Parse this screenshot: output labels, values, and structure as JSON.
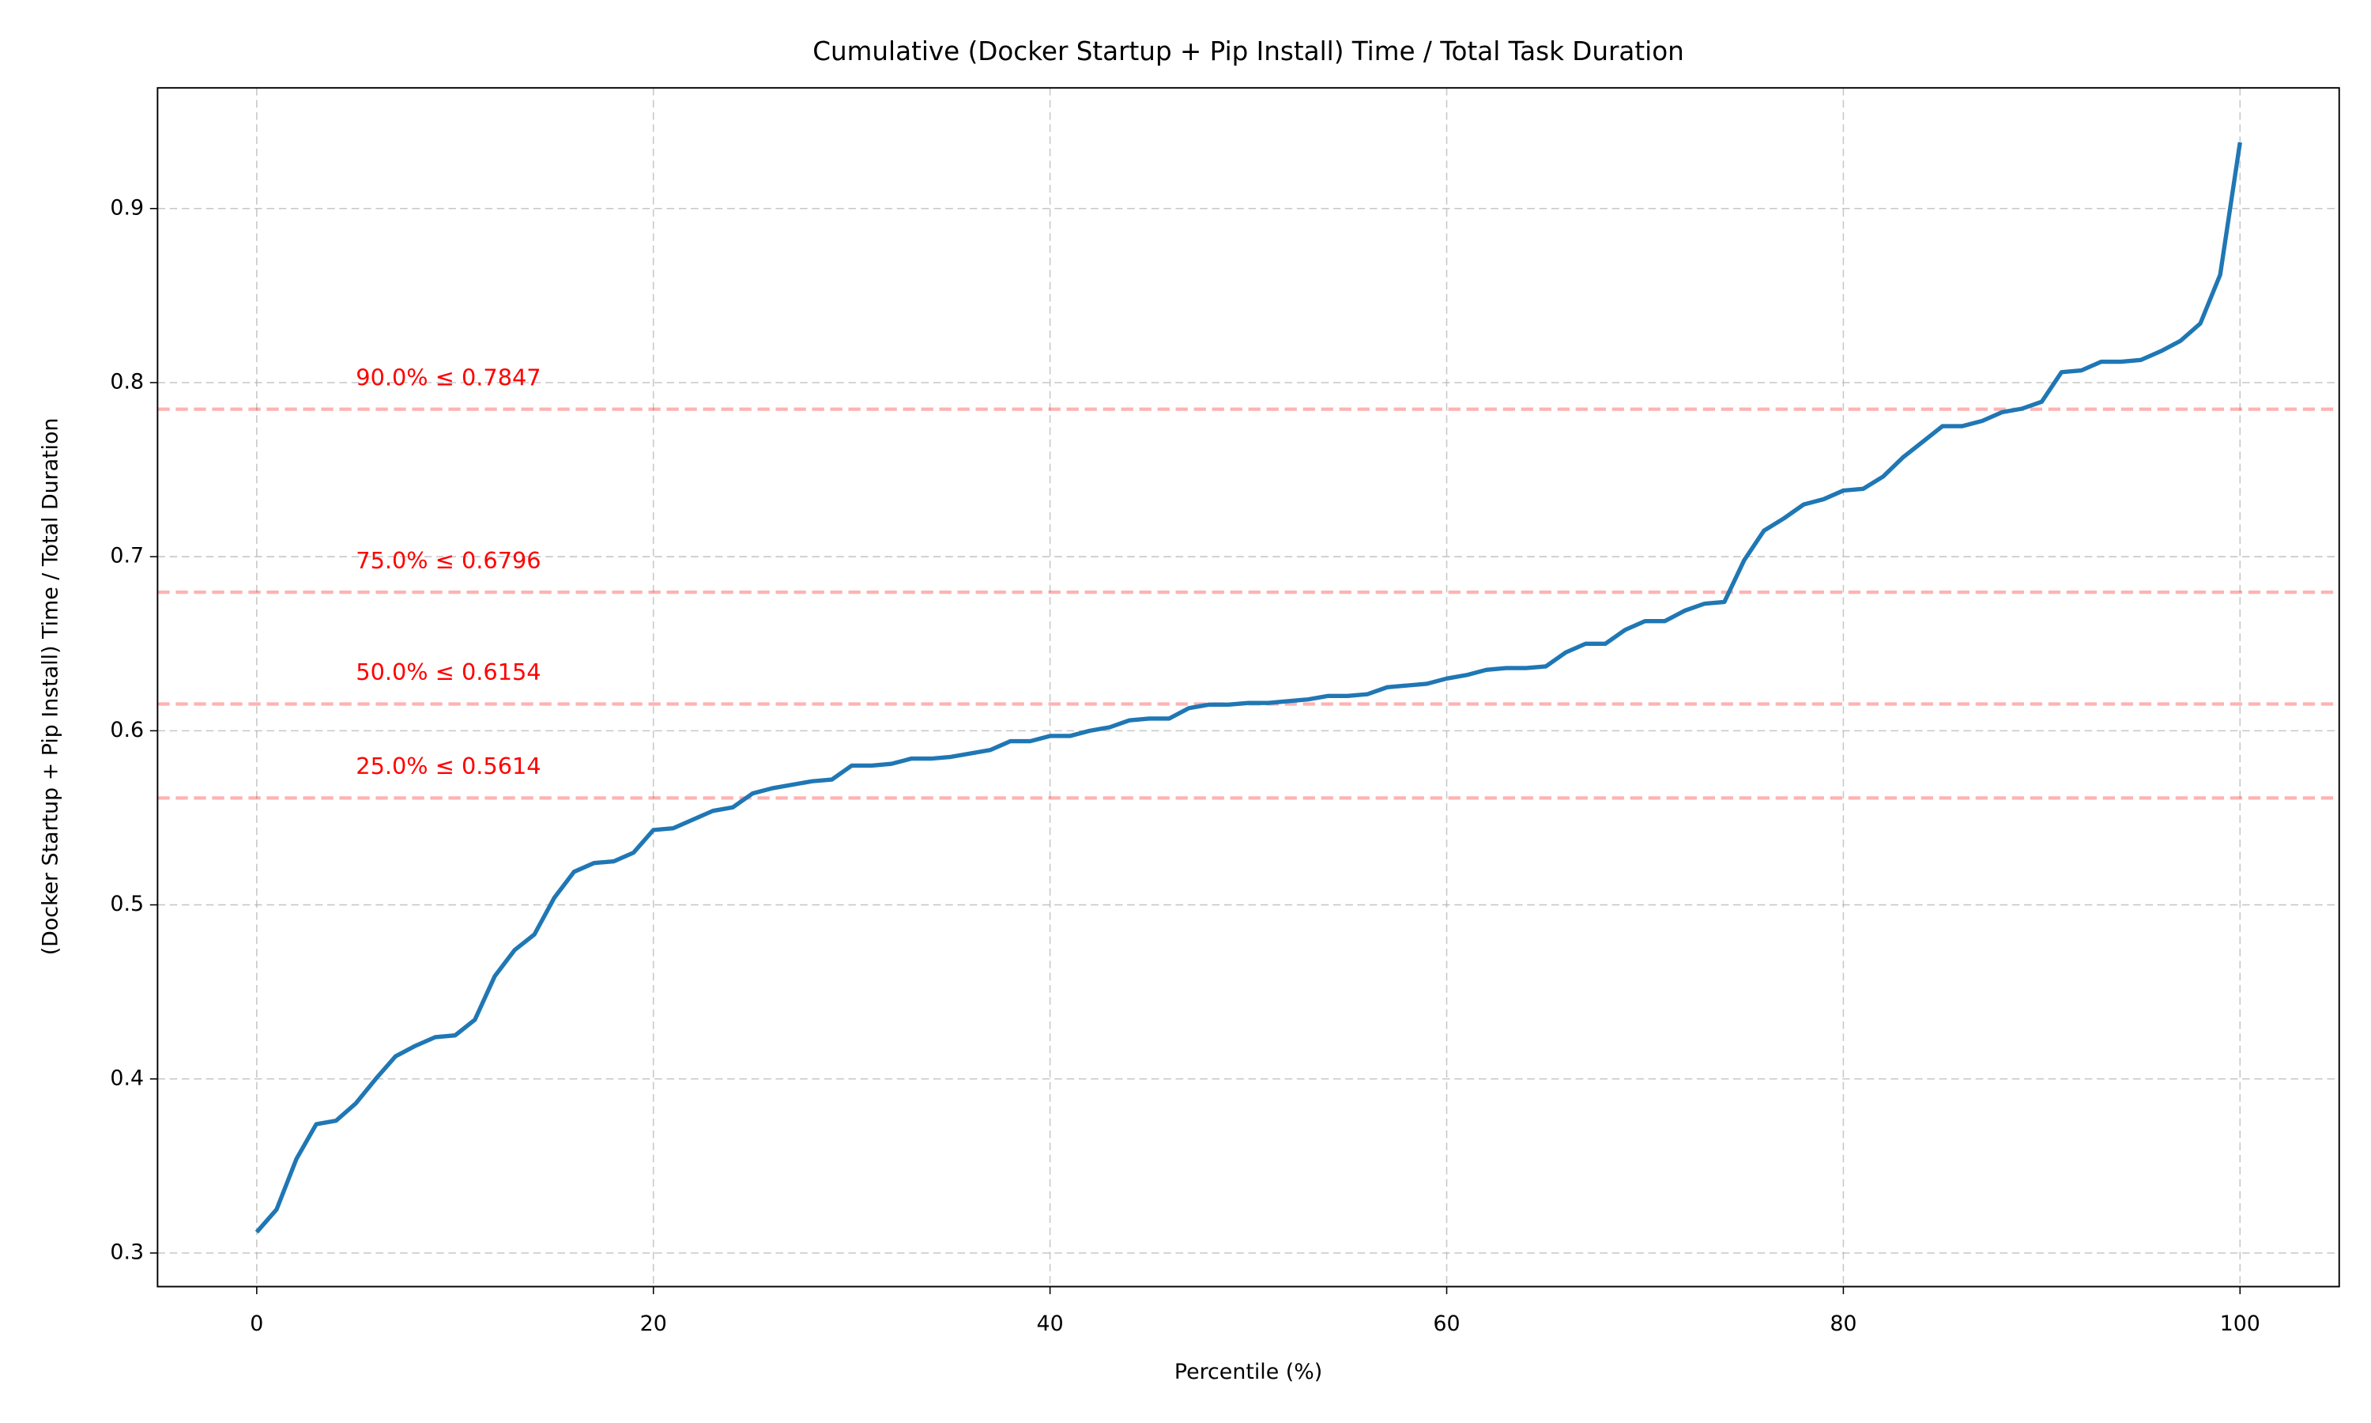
{
  "chart_data": {
    "type": "line",
    "title": "Cumulative (Docker Startup + Pip Install) Time / Total Task Duration",
    "xlabel": "Percentile (%)",
    "ylabel": "(Docker Startup + Pip Install) Time / Total Duration",
    "x": [
      0,
      1,
      2,
      3,
      4,
      5,
      6,
      7,
      8,
      9,
      10,
      11,
      12,
      13,
      14,
      15,
      16,
      17,
      18,
      19,
      20,
      21,
      22,
      23,
      24,
      25,
      26,
      27,
      28,
      29,
      30,
      31,
      32,
      33,
      34,
      35,
      36,
      37,
      38,
      39,
      40,
      41,
      42,
      43,
      44,
      45,
      46,
      47,
      48,
      49,
      50,
      51,
      52,
      53,
      54,
      55,
      56,
      57,
      58,
      59,
      60,
      61,
      62,
      63,
      64,
      65,
      66,
      67,
      68,
      69,
      70,
      71,
      72,
      73,
      74,
      75,
      76,
      77,
      78,
      79,
      80,
      81,
      82,
      83,
      84,
      85,
      86,
      87,
      88,
      89,
      90,
      91,
      92,
      93,
      94,
      95,
      96,
      97,
      98,
      99,
      100
    ],
    "values": [
      0.312,
      0.325,
      0.354,
      0.374,
      0.376,
      0.386,
      0.4,
      0.413,
      0.419,
      0.424,
      0.425,
      0.434,
      0.459,
      0.474,
      0.483,
      0.504,
      0.519,
      0.524,
      0.525,
      0.53,
      0.543,
      0.544,
      0.549,
      0.554,
      0.556,
      0.564,
      0.567,
      0.569,
      0.571,
      0.572,
      0.58,
      0.58,
      0.581,
      0.584,
      0.584,
      0.585,
      0.587,
      0.589,
      0.594,
      0.594,
      0.597,
      0.597,
      0.6,
      0.602,
      0.606,
      0.607,
      0.607,
      0.613,
      0.615,
      0.615,
      0.616,
      0.616,
      0.617,
      0.618,
      0.62,
      0.62,
      0.621,
      0.625,
      0.626,
      0.627,
      0.63,
      0.632,
      0.635,
      0.636,
      0.636,
      0.637,
      0.645,
      0.65,
      0.65,
      0.658,
      0.663,
      0.663,
      0.669,
      0.673,
      0.674,
      0.698,
      0.715,
      0.722,
      0.73,
      0.733,
      0.738,
      0.739,
      0.746,
      0.757,
      0.766,
      0.775,
      0.775,
      0.778,
      0.783,
      0.785,
      0.789,
      0.806,
      0.807,
      0.812,
      0.812,
      0.813,
      0.818,
      0.824,
      0.834,
      0.862,
      0.938
    ],
    "color": "#1f77b4",
    "reference_lines": [
      {
        "value": 0.5614,
        "label": "25.0% ≤ 0.5614"
      },
      {
        "value": 0.6154,
        "label": "50.0% ≤ 0.6154"
      },
      {
        "value": 0.6796,
        "label": "75.0% ≤ 0.6796"
      },
      {
        "value": 0.7847,
        "label": "90.0% ≤ 0.7847"
      }
    ],
    "reference_color": "#ff0000",
    "xlim": [
      -5,
      105
    ],
    "ylim": [
      0.2807,
      0.9693
    ],
    "xticks": [
      0,
      20,
      40,
      60,
      80,
      100
    ],
    "yticks": [
      0.3,
      0.4,
      0.5,
      0.6,
      0.7,
      0.8,
      0.9
    ],
    "grid": true
  }
}
